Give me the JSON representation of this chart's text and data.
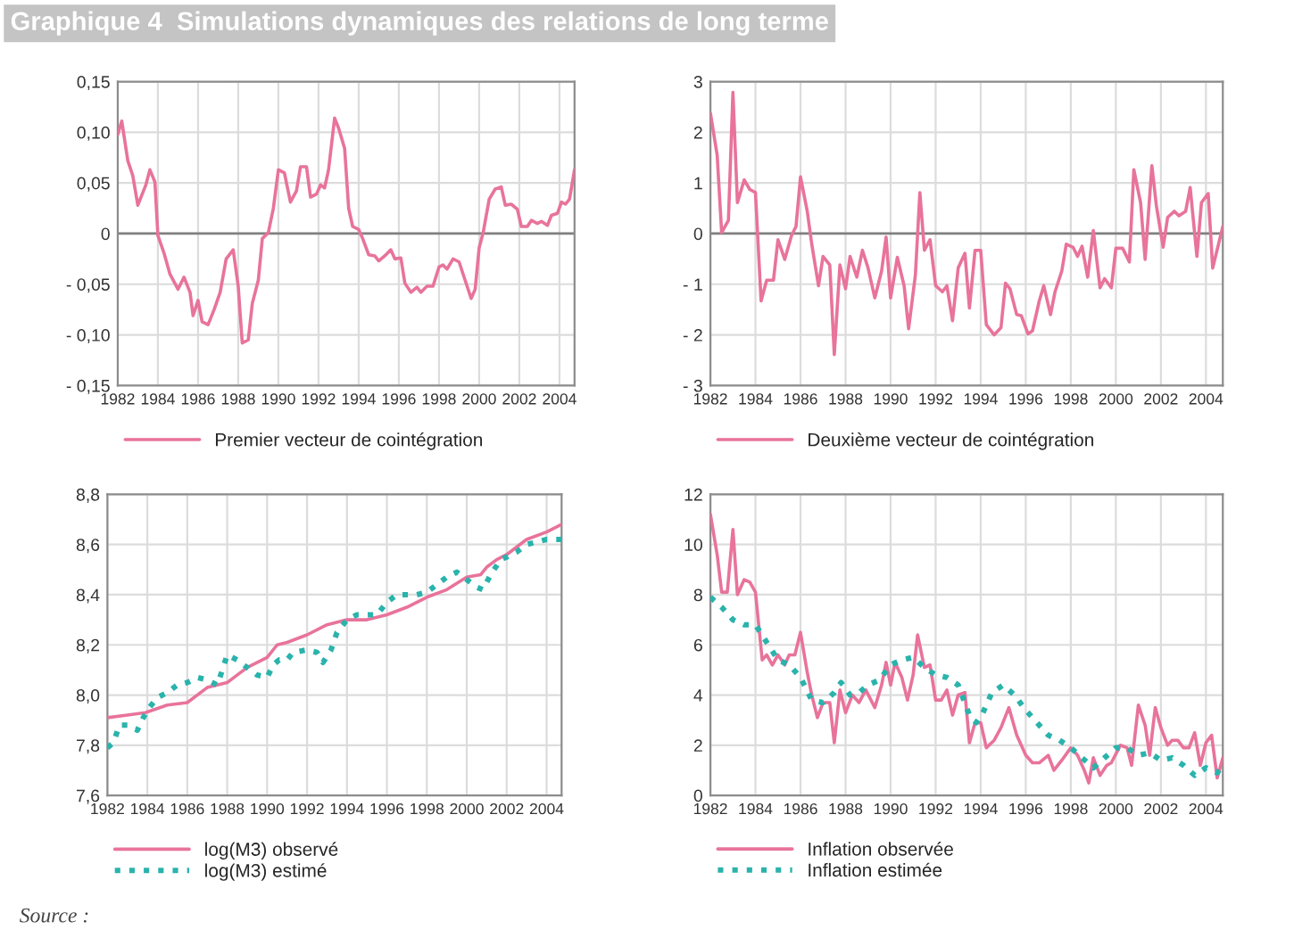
{
  "chart_data": [
    {
      "type": "line",
      "title": "Graphique 4  Simulations dynamiques des relations de long terme",
      "xlim": [
        1982,
        2004.75
      ],
      "xticks": [
        1982,
        1984,
        1986,
        1988,
        1990,
        1992,
        1994,
        1996,
        1998,
        2000,
        2002,
        2004
      ],
      "ylim": [
        -0.15,
        0.15
      ],
      "yticks": [
        {
          "value": -0.15,
          "label": "- 0,15"
        },
        {
          "value": -0.1,
          "label": "- 0,10"
        },
        {
          "value": -0.05,
          "label": "- 0,05"
        },
        {
          "value": 0,
          "label": "0"
        },
        {
          "value": 0.05,
          "label": "0,05"
        },
        {
          "value": 0.1,
          "label": "0,10"
        },
        {
          "value": 0.15,
          "label": "0,15"
        }
      ],
      "grid": true,
      "legend": "bottom",
      "ref_lines": [
        {
          "axis": "y",
          "value": 0,
          "color": "#808080"
        }
      ],
      "series": [
        {
          "name": "Premier vecteur de cointégration",
          "color": "#e8739b",
          "line_style": "solid",
          "x": [
            1982.0,
            1982.2,
            1982.5,
            1982.75,
            1983.0,
            1983.4,
            1983.6,
            1983.85,
            1984.0,
            1984.3,
            1984.6,
            1985.0,
            1985.3,
            1985.6,
            1985.75,
            1986.0,
            1986.2,
            1986.5,
            1986.8,
            1987.1,
            1987.4,
            1987.75,
            1988.0,
            1988.2,
            1988.5,
            1988.7,
            1989.0,
            1989.2,
            1989.5,
            1989.75,
            1990.0,
            1990.3,
            1990.6,
            1990.9,
            1991.1,
            1991.4,
            1991.6,
            1991.9,
            1992.1,
            1992.3,
            1992.5,
            1992.8,
            1993.0,
            1993.3,
            1993.5,
            1993.7,
            1994.0,
            1994.2,
            1994.5,
            1994.8,
            1995.0,
            1995.3,
            1995.6,
            1995.8,
            1996.1,
            1996.3,
            1996.6,
            1996.9,
            1997.1,
            1997.4,
            1997.7,
            1998.0,
            1998.2,
            1998.4,
            1998.7,
            1999.0,
            1999.3,
            1999.6,
            1999.8,
            2000.0,
            2000.2,
            2000.5,
            2000.8,
            2001.1,
            2001.3,
            2001.6,
            2001.9,
            2002.1,
            2002.4,
            2002.6,
            2002.9,
            2003.1,
            2003.4,
            2003.6,
            2003.9,
            2004.1,
            2004.3,
            2004.5,
            2004.75
          ],
          "values": [
            0.098,
            0.111,
            0.072,
            0.057,
            0.028,
            0.048,
            0.063,
            0.051,
            -0.002,
            -0.019,
            -0.04,
            -0.055,
            -0.043,
            -0.058,
            -0.081,
            -0.066,
            -0.087,
            -0.09,
            -0.075,
            -0.058,
            -0.025,
            -0.016,
            -0.052,
            -0.108,
            -0.105,
            -0.069,
            -0.046,
            -0.005,
            0.001,
            0.025,
            0.063,
            0.06,
            0.031,
            0.042,
            0.066,
            0.066,
            0.036,
            0.039,
            0.048,
            0.045,
            0.063,
            0.114,
            0.104,
            0.084,
            0.025,
            0.007,
            0.004,
            -0.005,
            -0.021,
            -0.022,
            -0.027,
            -0.022,
            -0.016,
            -0.025,
            -0.024,
            -0.049,
            -0.058,
            -0.053,
            -0.058,
            -0.052,
            -0.052,
            -0.033,
            -0.031,
            -0.035,
            -0.025,
            -0.028,
            -0.046,
            -0.064,
            -0.055,
            -0.014,
            0.001,
            0.034,
            0.044,
            0.046,
            0.028,
            0.029,
            0.024,
            0.007,
            0.007,
            0.013,
            0.01,
            0.012,
            0.008,
            0.018,
            0.02,
            0.031,
            0.029,
            0.034,
            0.063
          ]
        }
      ]
    },
    {
      "type": "line",
      "xlim": [
        1982,
        2004.75
      ],
      "xticks": [
        1982,
        1984,
        1986,
        1988,
        1990,
        1992,
        1994,
        1996,
        1998,
        2000,
        2002,
        2004
      ],
      "ylim": [
        -3,
        3
      ],
      "yticks": [
        {
          "value": -3,
          "label": "- 3"
        },
        {
          "value": -2,
          "label": "- 2"
        },
        {
          "value": -1,
          "label": "- 1"
        },
        0,
        1,
        2,
        3
      ],
      "grid": true,
      "legend": "bottom",
      "ref_lines": [
        {
          "axis": "y",
          "value": 0,
          "color": "#808080"
        }
      ],
      "series": [
        {
          "name": "Deuxième vecteur de cointégration",
          "color": "#e8739b",
          "line_style": "solid",
          "x": [
            1982.0,
            1982.3,
            1982.5,
            1982.8,
            1983.0,
            1983.2,
            1983.5,
            1983.75,
            1984.0,
            1984.25,
            1984.5,
            1984.8,
            1985.0,
            1985.3,
            1985.6,
            1985.8,
            1986.0,
            1986.3,
            1986.5,
            1986.8,
            1987.0,
            1987.3,
            1987.5,
            1987.75,
            1988.0,
            1988.2,
            1988.5,
            1988.75,
            1989.0,
            1989.3,
            1989.6,
            1989.8,
            1990.0,
            1990.3,
            1990.6,
            1990.8,
            1991.1,
            1991.3,
            1991.5,
            1991.75,
            1992.0,
            1992.3,
            1992.5,
            1992.75,
            1993.0,
            1993.3,
            1993.5,
            1993.75,
            1994.0,
            1994.25,
            1994.6,
            1994.9,
            1995.1,
            1995.3,
            1995.6,
            1995.8,
            1996.1,
            1996.3,
            1996.6,
            1996.8,
            1997.1,
            1997.3,
            1997.6,
            1997.8,
            1998.1,
            1998.3,
            1998.5,
            1998.75,
            1999.0,
            1999.3,
            1999.5,
            1999.8,
            2000.0,
            2000.3,
            2000.6,
            2000.8,
            2001.1,
            2001.3,
            2001.6,
            2001.8,
            2002.1,
            2002.3,
            2002.6,
            2002.8,
            2003.1,
            2003.3,
            2003.6,
            2003.8,
            2004.1,
            2004.3,
            2004.75
          ],
          "values": [
            2.38,
            1.55,
            0.02,
            0.26,
            2.79,
            0.61,
            1.06,
            0.87,
            0.81,
            -1.33,
            -0.92,
            -0.92,
            -0.12,
            -0.51,
            -0.04,
            0.14,
            1.12,
            0.44,
            -0.21,
            -1.03,
            -0.45,
            -0.62,
            -2.39,
            -0.62,
            -1.09,
            -0.45,
            -0.86,
            -0.33,
            -0.68,
            -1.27,
            -0.74,
            -0.07,
            -1.27,
            -0.47,
            -1.03,
            -1.88,
            -0.82,
            0.81,
            -0.33,
            -0.12,
            -1.03,
            -1.15,
            -1.03,
            -1.72,
            -0.68,
            -0.39,
            -1.47,
            -0.33,
            -0.33,
            -1.8,
            -2.0,
            -1.86,
            -0.98,
            -1.09,
            -1.6,
            -1.62,
            -1.98,
            -1.92,
            -1.33,
            -1.03,
            -1.6,
            -1.15,
            -0.74,
            -0.21,
            -0.27,
            -0.45,
            -0.25,
            -0.86,
            0.06,
            -1.07,
            -0.89,
            -1.07,
            -0.29,
            -0.29,
            -0.56,
            1.26,
            0.61,
            -0.51,
            1.34,
            0.55,
            -0.27,
            0.32,
            0.44,
            0.35,
            0.44,
            0.91,
            -0.45,
            0.61,
            0.79,
            -0.68,
            0.14
          ]
        }
      ]
    },
    {
      "type": "line",
      "xlim": [
        1982,
        2004.75
      ],
      "xticks": [
        1982,
        1984,
        1986,
        1988,
        1990,
        1992,
        1994,
        1996,
        1998,
        2000,
        2002,
        2004
      ],
      "ylim": [
        7.6,
        8.8
      ],
      "yticks": [
        {
          "value": 7.6,
          "label": "7,6"
        },
        {
          "value": 7.8,
          "label": "7,8"
        },
        {
          "value": 8.0,
          "label": "8,0"
        },
        {
          "value": 8.2,
          "label": "8,2"
        },
        {
          "value": 8.4,
          "label": "8,4"
        },
        {
          "value": 8.6,
          "label": "8,6"
        },
        {
          "value": 8.8,
          "label": "8,8"
        }
      ],
      "grid": true,
      "legend": "bottom",
      "series": [
        {
          "name": "log(M3) observé",
          "color": "#e8739b",
          "line_style": "solid",
          "x": [
            1982,
            1983,
            1983.9,
            1985,
            1986,
            1987,
            1988,
            1989,
            1990,
            1990.5,
            1991,
            1992,
            1993,
            1994,
            1995,
            1996,
            1997,
            1998,
            1999,
            2000,
            2000.7,
            2001,
            2001.5,
            2002,
            2003,
            2004,
            2004.75
          ],
          "values": [
            7.91,
            7.92,
            7.93,
            7.96,
            7.97,
            8.03,
            8.05,
            8.11,
            8.15,
            8.2,
            8.21,
            8.24,
            8.28,
            8.3,
            8.3,
            8.32,
            8.35,
            8.39,
            8.42,
            8.47,
            8.48,
            8.51,
            8.54,
            8.56,
            8.62,
            8.65,
            8.68
          ]
        },
        {
          "name": "log(M3) estimé",
          "color": "#2ab3ac",
          "line_style": "dotted",
          "x": [
            1982,
            1982.3,
            1982.6,
            1983,
            1983.5,
            1983.8,
            1984.1,
            1984.5,
            1985,
            1985.5,
            1986,
            1986.5,
            1987,
            1987.5,
            1987.8,
            1988,
            1988.5,
            1989,
            1989.5,
            1990,
            1990.3,
            1990.6,
            1991,
            1991.3,
            1992,
            1992.5,
            1992.8,
            1993.2,
            1993.5,
            1994,
            1994.5,
            1995,
            1995.5,
            1996,
            1996.5,
            1997,
            1997.5,
            1998,
            1998.5,
            1999,
            1999.5,
            2000,
            2000.5,
            2000.8,
            2001.2,
            2001.7,
            2002,
            2002.5,
            2003,
            2003.5,
            2004,
            2004.75
          ],
          "values": [
            7.79,
            7.81,
            7.88,
            7.88,
            7.86,
            7.91,
            7.95,
            7.99,
            8.01,
            8.04,
            8.05,
            8.07,
            8.06,
            8.04,
            8.11,
            8.16,
            8.14,
            8.11,
            8.08,
            8.07,
            8.12,
            8.14,
            8.14,
            8.17,
            8.18,
            8.17,
            8.13,
            8.18,
            8.25,
            8.3,
            8.32,
            8.32,
            8.32,
            8.37,
            8.4,
            8.4,
            8.4,
            8.41,
            8.44,
            8.47,
            8.49,
            8.46,
            8.43,
            8.42,
            8.48,
            8.54,
            8.55,
            8.57,
            8.6,
            8.61,
            8.62,
            8.62
          ]
        }
      ]
    },
    {
      "type": "line",
      "xlim": [
        1982,
        2004.75
      ],
      "xticks": [
        1982,
        1984,
        1986,
        1988,
        1990,
        1992,
        1994,
        1996,
        1998,
        2000,
        2002,
        2004
      ],
      "ylim": [
        0,
        12
      ],
      "yticks": [
        0,
        2,
        4,
        6,
        8,
        10,
        12
      ],
      "grid": true,
      "legend": "bottom",
      "annotations": [
        "Source :"
      ],
      "series": [
        {
          "name": "Inflation observée",
          "color": "#e8739b",
          "line_style": "solid",
          "x": [
            1982,
            1982.3,
            1982.5,
            1982.75,
            1983.0,
            1983.2,
            1983.5,
            1983.75,
            1984.0,
            1984.3,
            1984.5,
            1984.75,
            1985,
            1985.3,
            1985.5,
            1985.75,
            1986.0,
            1986.3,
            1986.5,
            1986.75,
            1987.0,
            1987.3,
            1987.5,
            1987.75,
            1988.0,
            1988.3,
            1988.6,
            1988.9,
            1989.3,
            1989.6,
            1989.8,
            1990.0,
            1990.2,
            1990.5,
            1990.75,
            1991.0,
            1991.2,
            1991.5,
            1991.75,
            1992.0,
            1992.25,
            1992.5,
            1992.75,
            1993.0,
            1993.3,
            1993.5,
            1993.75,
            1994.0,
            1994.25,
            1994.6,
            1994.9,
            1995.25,
            1995.6,
            1996.0,
            1996.3,
            1996.6,
            1997.0,
            1997.25,
            1997.6,
            1998.0,
            1998.3,
            1998.6,
            1998.8,
            1999.0,
            1999.3,
            1999.6,
            1999.8,
            2000.2,
            2000.5,
            2000.7,
            2001.0,
            2001.3,
            2001.5,
            2001.75,
            2002.0,
            2002.3,
            2002.5,
            2002.75,
            2003.0,
            2003.25,
            2003.5,
            2003.75,
            2004.0,
            2004.25,
            2004.5,
            2004.75
          ],
          "values": [
            11.2,
            9.6,
            8.1,
            8.1,
            10.6,
            8.0,
            8.6,
            8.5,
            8.1,
            5.4,
            5.6,
            5.2,
            5.6,
            5.2,
            5.6,
            5.6,
            6.5,
            4.9,
            4.0,
            3.1,
            3.7,
            3.7,
            2.1,
            4.2,
            3.3,
            4.0,
            3.7,
            4.2,
            3.5,
            4.4,
            5.3,
            4.4,
            5.3,
            4.7,
            3.8,
            4.8,
            6.4,
            5.1,
            5.2,
            3.8,
            3.8,
            4.2,
            3.2,
            4.0,
            4.1,
            2.1,
            2.9,
            2.9,
            1.9,
            2.2,
            2.7,
            3.5,
            2.4,
            1.6,
            1.3,
            1.3,
            1.6,
            1.0,
            1.4,
            1.9,
            1.6,
            1.0,
            0.5,
            1.5,
            0.8,
            1.2,
            1.3,
            2.0,
            1.9,
            1.2,
            3.6,
            2.8,
            1.6,
            3.5,
            2.7,
            2.0,
            2.2,
            2.2,
            1.9,
            1.9,
            2.5,
            1.2,
            2.1,
            2.4,
            0.7,
            1.5
          ]
        },
        {
          "name": "Inflation estimée",
          "color": "#2ab3ac",
          "line_style": "dotted",
          "x": [
            1982,
            1982.5,
            1983,
            1983.5,
            1984,
            1984.5,
            1985,
            1985.5,
            1986,
            1986.5,
            1987,
            1987.5,
            1987.8,
            1988.2,
            1988.6,
            1989,
            1989.5,
            1990,
            1990.5,
            1991,
            1991.5,
            1992,
            1992.5,
            1993,
            1993.5,
            1993.8,
            1994.1,
            1994.5,
            1995,
            1995.5,
            1996,
            1996.5,
            1997,
            1997.5,
            1998,
            1998.5,
            1999,
            1999.5,
            2000,
            2000.5,
            2001,
            2001.5,
            2002,
            2002.5,
            2003,
            2003.5,
            2004,
            2004.5,
            2004.75
          ],
          "values": [
            7.9,
            7.5,
            7.0,
            6.8,
            6.8,
            6.1,
            5.4,
            5.2,
            4.7,
            3.8,
            3.7,
            4.1,
            4.5,
            4.0,
            4.1,
            4.4,
            4.6,
            5.2,
            5.4,
            5.5,
            5.1,
            4.8,
            4.7,
            4.4,
            3.2,
            2.9,
            3.3,
            4.1,
            4.4,
            4.0,
            3.4,
            2.9,
            2.4,
            2.2,
            1.9,
            1.5,
            1.1,
            1.5,
            1.9,
            1.9,
            1.6,
            1.7,
            1.4,
            1.5,
            1.2,
            0.8,
            1.1,
            0.9,
            1.2
          ]
        }
      ]
    }
  ]
}
